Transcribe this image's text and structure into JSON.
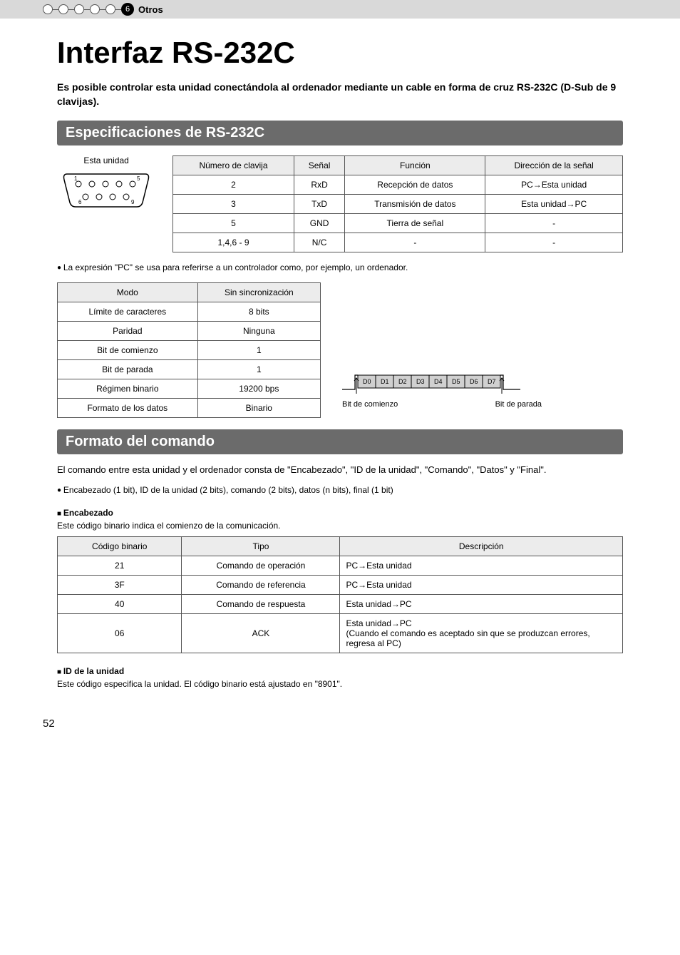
{
  "breadcrumb": {
    "num": "6",
    "label": "Otros"
  },
  "title": "Interfaz RS-232C",
  "lead": "Es posible controlar esta unidad conectándola al ordenador mediante un cable en forma de cruz RS-232C (D-Sub de 9 clavijas).",
  "sections": {
    "spec_title": "Especificaciones de RS-232C",
    "cmd_title": "Formato del comando"
  },
  "port_label": "Esta unidad",
  "pin_table": {
    "headers": [
      "Número de clavija",
      "Señal",
      "Función",
      "Dirección de la señal"
    ],
    "rows": [
      [
        "2",
        "RxD",
        "Recepción de datos",
        "PC→Esta unidad"
      ],
      [
        "3",
        "TxD",
        "Transmisión de datos",
        "Esta unidad→PC"
      ],
      [
        "5",
        "GND",
        "Tierra de señal",
        "-"
      ],
      [
        "1,4,6 - 9",
        "N/C",
        "-",
        "-"
      ]
    ]
  },
  "note_pc": "La expresión \"PC\" se usa para referirse a un controlador como, por ejemplo, un ordenador.",
  "mode_table": {
    "rows": [
      [
        "Modo",
        "Sin sincronización"
      ],
      [
        "Límite de caracteres",
        "8 bits"
      ],
      [
        "Paridad",
        "Ninguna"
      ],
      [
        "Bit de comienzo",
        "1"
      ],
      [
        "Bit de parada",
        "1"
      ],
      [
        "Régimen binario",
        "19200 bps"
      ],
      [
        "Formato de los datos",
        "Binario"
      ]
    ]
  },
  "timing": {
    "bits": [
      "D0",
      "D1",
      "D2",
      "D3",
      "D4",
      "D5",
      "D6",
      "D7"
    ],
    "start": "Bit de comienzo",
    "stop": "Bit de parada"
  },
  "cmd_intro": "El comando entre esta unidad y el ordenador consta de \"Encabezado\", \"ID de la unidad\", \"Comando\", \"Datos\" y \"Final\".",
  "cmd_intro2": "Encabezado (1 bit), ID de la unidad (2 bits), comando (2 bits), datos (n bits), final (1 bit)",
  "encabezado": {
    "title": "Encabezado",
    "desc": "Este código binario indica el comienzo de la comunicación.",
    "headers": [
      "Código binario",
      "Tipo",
      "Descripción"
    ],
    "rows": [
      [
        "21",
        "Comando de operación",
        "PC→Esta unidad"
      ],
      [
        "3F",
        "Comando de referencia",
        "PC→Esta unidad"
      ],
      [
        "40",
        "Comando de respuesta",
        "Esta unidad→PC"
      ],
      [
        "06",
        "ACK",
        "Esta unidad→PC\n(Cuando el comando es aceptado sin que se produzcan errores, regresa al PC)"
      ]
    ]
  },
  "id_unidad": {
    "title": "ID de la unidad",
    "desc": "Este código especifica la unidad. El código binario está ajustado en \"8901\"."
  },
  "page": "52",
  "colors": {
    "breadcrumb_bg": "#d9d9d9",
    "section_bar_bg": "#6b6b6b",
    "table_header_bg": "#ececec",
    "border": "#555555",
    "timing_cell_bg": "#d0d0d0"
  }
}
